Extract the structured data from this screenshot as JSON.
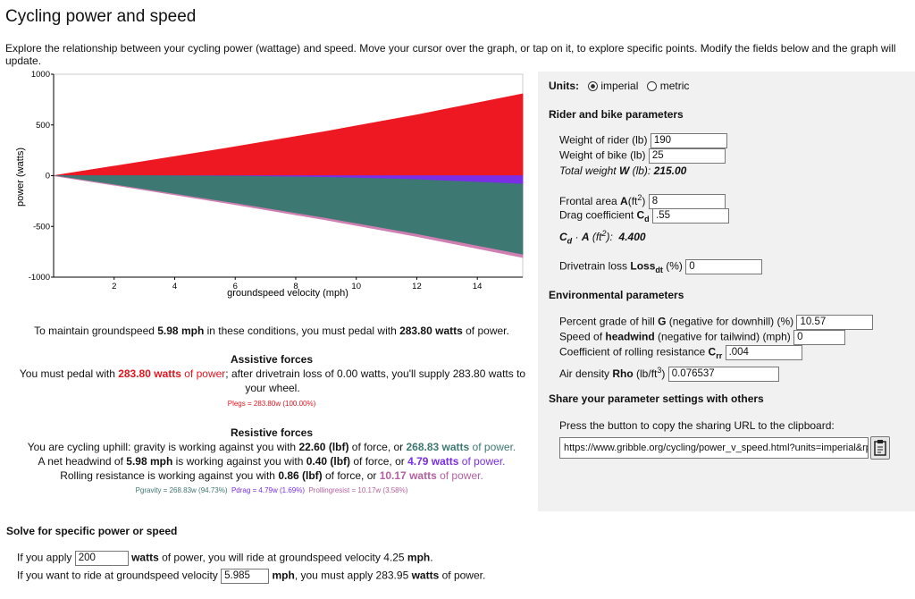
{
  "header": {
    "title": "Cycling power and speed",
    "intro": "Explore the relationship between your cycling power (wattage) and speed. Move your cursor over the graph, or tap on it, to explore specific points. Modify the fields below and the graph will update."
  },
  "chart_data": {
    "type": "stacked-area",
    "x_label": "groundspeed velocity (mph)",
    "y_label": "power (watts)",
    "x": [
      0,
      3,
      6,
      9,
      12,
      15.5
    ],
    "series": [
      {
        "color": "#ee1822",
        "values": [
          0,
          140.6,
          284.7,
          436.2,
          598.6,
          806.6
        ]
      },
      {
        "color": "#7a2ee6",
        "values": [
          0,
          -0.6,
          -4.8,
          -16.3,
          -38.7,
          -83.4
        ]
      },
      {
        "color": "#3e7872",
        "values": [
          0,
          -134.9,
          -269.7,
          -404.6,
          -539.5,
          -696.8
        ]
      },
      {
        "color": "#cf7fb2",
        "values": [
          0,
          -5.1,
          -10.2,
          -15.3,
          -20.4,
          -26.4
        ]
      }
    ],
    "xlim": [
      0,
      15.5
    ],
    "xticks": [
      2,
      4,
      6,
      8,
      10,
      12,
      14
    ],
    "ylim": [
      -1000,
      1000
    ],
    "yticks": [
      -1000,
      -500,
      0,
      500,
      1000
    ],
    "grid": false
  },
  "results": {
    "maintain": [
      "To maintain groundspeed ",
      "5.98 mph",
      " in these conditions, you must pedal with ",
      "283.80 watts",
      " of power."
    ],
    "assistive": {
      "heading": "Assistive forces",
      "line": [
        "You must pedal with ",
        "283.80 watts",
        " of power",
        "; after drivetrain loss of 0.00 watts, you'll supply 283.80 watts to your wheel."
      ],
      "legend": "Plegs = 283.80w (100.00%)"
    },
    "resistive": {
      "heading": "Resistive forces",
      "gravity": [
        "You are cycling uphill: gravity is working against you with ",
        "22.60 (lbf)",
        " of force, or ",
        "268.83 watts",
        " of power."
      ],
      "drag": [
        "A net headwind of ",
        "5.98 mph",
        " is working against you with ",
        "0.40 (lbf)",
        " of force, or ",
        "4.79 watts",
        " of power."
      ],
      "rolling": [
        "Rolling resistance is working against you with ",
        "0.86 (lbf)",
        " of force, or ",
        "10.17 watts",
        " of power."
      ],
      "legend": [
        "Pgravity = 268.83w (94.73%)",
        "Pdrag = 4.79w (1.69%)",
        "Prollingresist = 10.17w (3.58%)"
      ]
    }
  },
  "params": {
    "units": {
      "label": "Units:",
      "options": [
        "imperial",
        "metric"
      ]
    },
    "rider_bike": {
      "heading": "Rider and bike parameters",
      "weight_rider": {
        "label": "Weight of rider (lb)",
        "value": "190"
      },
      "weight_bike": {
        "label": "Weight of bike (lb)",
        "value": "25"
      },
      "total": [
        "Total weight ",
        "W",
        " (lb): ",
        "215.00"
      ],
      "frontal": {
        "label": [
          "Frontal area ",
          "A",
          "(ft",
          "2",
          ")"
        ],
        "value": "8"
      },
      "drag": {
        "label": [
          "Drag coefficient ",
          "C",
          "d"
        ],
        "value": ".55"
      },
      "cda": [
        "C",
        "d",
        " · ",
        "A",
        " (ft",
        "2",
        "):",
        "4.400"
      ],
      "drivetrain": {
        "label": [
          "Drivetrain loss ",
          "Loss",
          "dt",
          " (%)"
        ],
        "value": "0"
      }
    },
    "environment": {
      "heading": "Environmental parameters",
      "grade": {
        "label": [
          "Percent grade of hill ",
          "G",
          " (negative for downhill) (%)"
        ],
        "value": "10.57"
      },
      "headwind": {
        "label": [
          "Speed of ",
          "headwind",
          " (negative for tailwind) (mph)"
        ],
        "value": "0"
      },
      "crr": {
        "label": [
          "Coefficient of rolling resistance ",
          "C",
          "rr"
        ],
        "value": ".004"
      },
      "rho": {
        "label": [
          "Air density ",
          "Rho",
          " (lb/ft",
          "3",
          ")"
        ],
        "value": "0.076537"
      }
    },
    "share": {
      "heading": "Share your parameter settings with others",
      "text": "Press the button to copy the sharing URL to the clipboard:",
      "url": "https://www.gribble.org/cycling/power_v_speed.html?units=imperial&rp_"
    }
  },
  "solve": {
    "heading": "Solve for specific power or speed",
    "power": [
      "If you apply ",
      "200",
      "watts",
      " of power, you will ride at groundspeed velocity 4.25 ",
      "mph",
      "."
    ],
    "speed": [
      "If you want to ride at groundspeed velocity ",
      "5.985",
      "mph",
      ", you must apply 283.95 ",
      "watts",
      " of power."
    ]
  }
}
